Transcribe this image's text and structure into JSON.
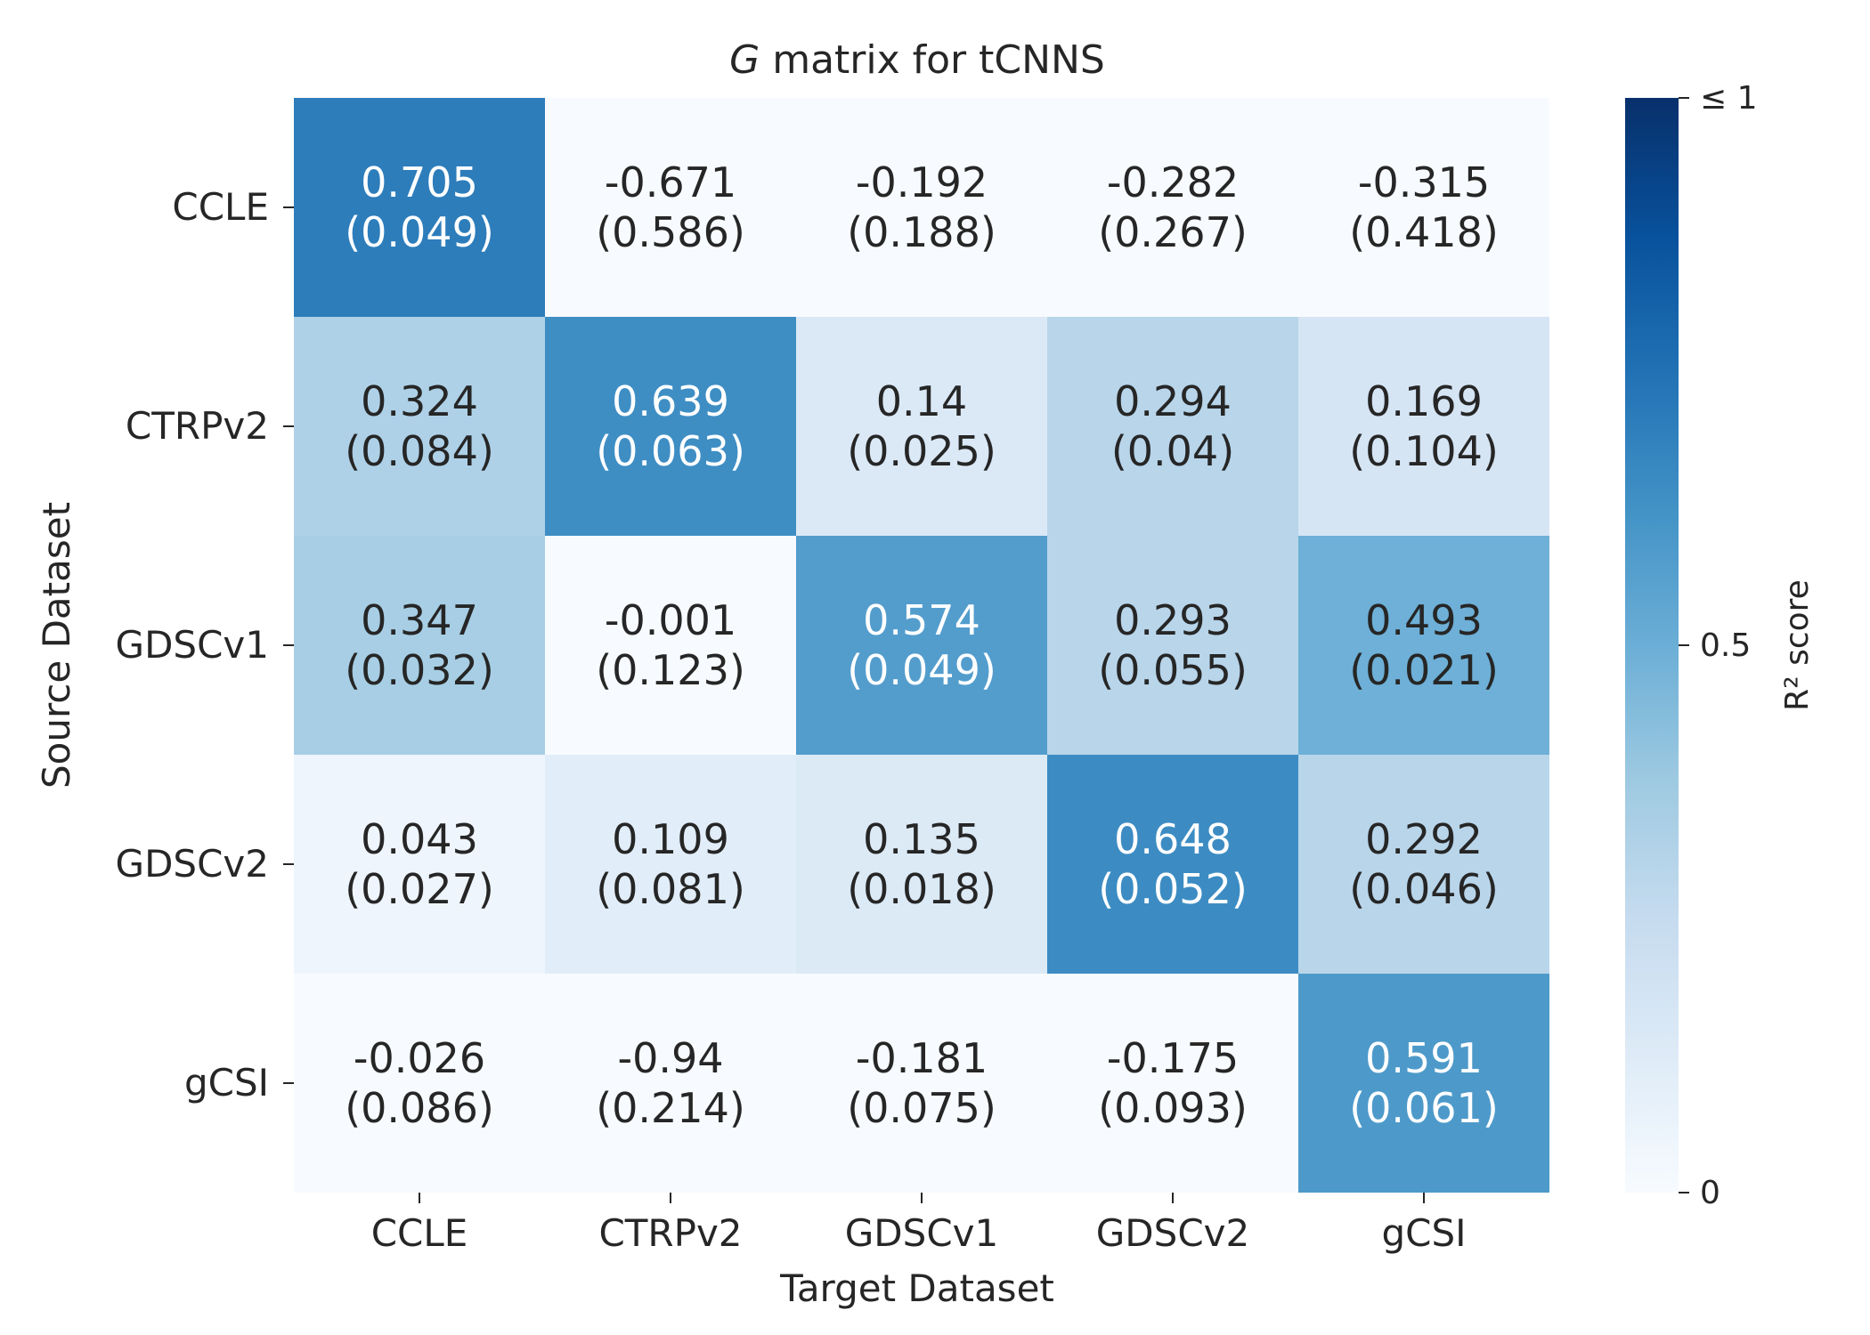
{
  "chart_data": {
    "type": "heatmap",
    "title_symbol": "G",
    "title_rest": " matrix for tCNNS",
    "xlabel": "Target Dataset",
    "ylabel": "Source Dataset",
    "x_categories": [
      "CCLE",
      "CTRPv2",
      "GDSCv1",
      "GDSCv2",
      "gCSI"
    ],
    "y_categories": [
      "CCLE",
      "CTRPv2",
      "GDSCv1",
      "GDSCv2",
      "gCSI"
    ],
    "values": [
      [
        0.705,
        -0.671,
        -0.192,
        -0.282,
        -0.315
      ],
      [
        0.324,
        0.639,
        0.14,
        0.294,
        0.169
      ],
      [
        0.347,
        -0.001,
        0.574,
        0.293,
        0.493
      ],
      [
        0.043,
        0.109,
        0.135,
        0.648,
        0.292
      ],
      [
        -0.026,
        -0.94,
        -0.181,
        -0.175,
        0.591
      ]
    ],
    "std": [
      [
        "(0.049)",
        "(0.586)",
        "(0.188)",
        "(0.267)",
        "(0.418)"
      ],
      [
        "(0.084)",
        "(0.063)",
        "(0.025)",
        "(0.04)",
        "(0.104)"
      ],
      [
        "(0.032)",
        "(0.123)",
        "(0.049)",
        "(0.055)",
        "(0.021)"
      ],
      [
        "(0.027)",
        "(0.081)",
        "(0.018)",
        "(0.052)",
        "(0.046)"
      ],
      [
        "(0.086)",
        "(0.214)",
        "(0.075)",
        "(0.093)",
        "(0.061)"
      ]
    ],
    "colorbar": {
      "label": "R² score",
      "range": [
        0,
        1
      ],
      "ticks": [
        0,
        0.5,
        1
      ],
      "tick_labels": [
        "0",
        "0.5",
        "≤ 1"
      ],
      "colormap": "Blues"
    },
    "grid": false
  }
}
